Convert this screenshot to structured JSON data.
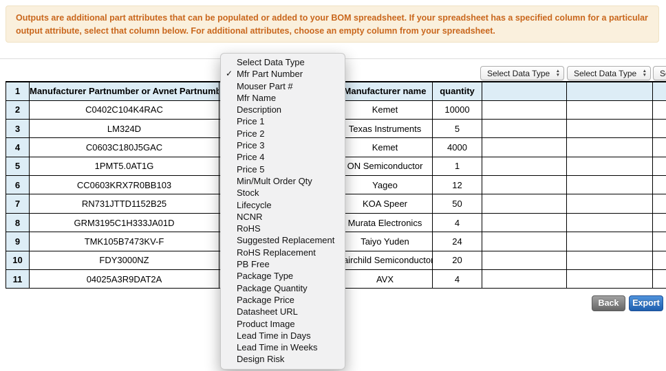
{
  "banner": {
    "text": "Outputs are additional part attributes that can be populated or added to your BOM spreadsheet. If your spreadsheet has a specified column for a particular output attribute, select that column below. For additional attributes, choose an empty column from your spreadsheet."
  },
  "column_selectors": [
    {
      "value": "Select Data Type"
    },
    {
      "value": "Select Data Type"
    },
    {
      "value": "Select Data Type"
    }
  ],
  "dropdown_menu": {
    "items": [
      {
        "label": "Select Data Type",
        "checked": false
      },
      {
        "label": "Mfr Part Number",
        "checked": true
      },
      {
        "label": "Mouser Part #",
        "checked": false
      },
      {
        "label": "Mfr Name",
        "checked": false
      },
      {
        "label": "Description",
        "checked": false
      },
      {
        "label": "Price 1",
        "checked": false
      },
      {
        "label": "Price 2",
        "checked": false
      },
      {
        "label": "Price 3",
        "checked": false
      },
      {
        "label": "Price 4",
        "checked": false
      },
      {
        "label": "Price 5",
        "checked": false
      },
      {
        "label": "Min/Mult Order Qty",
        "checked": false
      },
      {
        "label": "Stock",
        "checked": false
      },
      {
        "label": "Lifecycle",
        "checked": false
      },
      {
        "label": "NCNR",
        "checked": false
      },
      {
        "label": "RoHS",
        "checked": false
      },
      {
        "label": "Suggested Replacement",
        "checked": false
      },
      {
        "label": "RoHS Replacement",
        "checked": false
      },
      {
        "label": "PB Free",
        "checked": false
      },
      {
        "label": "Package Type",
        "checked": false
      },
      {
        "label": "Package Quantity",
        "checked": false
      },
      {
        "label": "Package Price",
        "checked": false
      },
      {
        "label": "Datasheet URL",
        "checked": false
      },
      {
        "label": "Product Image",
        "checked": false
      },
      {
        "label": "Lead Time in Days",
        "checked": false
      },
      {
        "label": "Lead Time in Weeks",
        "checked": false
      },
      {
        "label": "Design Risk",
        "checked": false
      }
    ]
  },
  "table": {
    "header": {
      "num": "1",
      "partnumber": "Manufacturer Partnumber or Avnet Partnumber",
      "manufacturer": "Manufacturer name",
      "quantity": "quantity"
    },
    "rows": [
      {
        "num": "2",
        "partnumber": "C0402C104K4RAC",
        "manufacturer": "Kemet",
        "quantity": "10000"
      },
      {
        "num": "3",
        "partnumber": "LM324D",
        "manufacturer": "Texas Instruments",
        "quantity": "5"
      },
      {
        "num": "4",
        "partnumber": "C0603C180J5GAC",
        "manufacturer": "Kemet",
        "quantity": "4000"
      },
      {
        "num": "5",
        "partnumber": "1PMT5.0AT1G",
        "manufacturer": "ON Semiconductor",
        "quantity": "1"
      },
      {
        "num": "6",
        "partnumber": "CC0603KRX7R0BB103",
        "manufacturer": "Yageo",
        "quantity": "12"
      },
      {
        "num": "7",
        "partnumber": "RN731JTTD1152B25",
        "manufacturer": "KOA Speer",
        "quantity": "50"
      },
      {
        "num": "8",
        "partnumber": "GRM3195C1H333JA01D",
        "manufacturer": "Murata Electronics",
        "quantity": "4"
      },
      {
        "num": "9",
        "partnumber": "TMK105B7473KV-F",
        "manufacturer": "Taiyo Yuden",
        "quantity": "24"
      },
      {
        "num": "10",
        "partnumber": "FDY3000NZ",
        "manufacturer": "Fairchild Semiconductor",
        "quantity": "20"
      },
      {
        "num": "11",
        "partnumber": "04025A3R9DAT2A",
        "manufacturer": "AVX",
        "quantity": "4"
      }
    ]
  },
  "buttons": {
    "back": "Back",
    "export": "Export"
  },
  "icons": {
    "checkmark": "✓",
    "stepper_up": "▲",
    "stepper_down": "▼"
  },
  "colors": {
    "banner_bg": "#faf0dd",
    "banner_border": "#f0e2c4",
    "banner_text": "#c9671d",
    "header_bg": "#ddedf6",
    "table_border": "#000000",
    "menu_bg": "#f1f1f2",
    "menu_border": "#c8c8c8",
    "select_border": "#adadad"
  }
}
